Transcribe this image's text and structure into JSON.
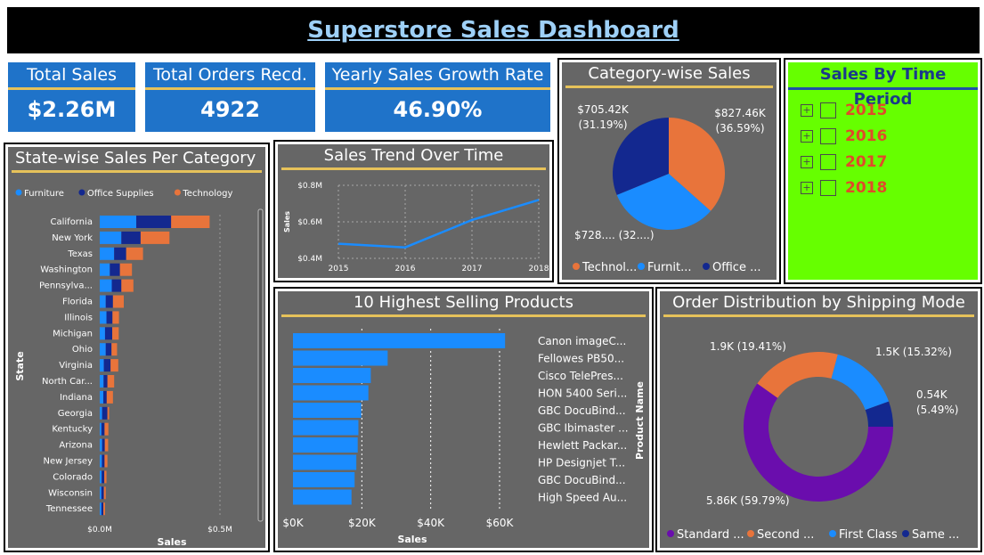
{
  "title": "Superstore Sales Dashboard",
  "kpis": {
    "total_sales": {
      "label": "Total Sales",
      "value": "$2.26M"
    },
    "total_orders": {
      "label": "Total Orders Recd.",
      "value": "4922"
    },
    "growth": {
      "label": "Yearly Sales Growth Rate",
      "value": "46.90%"
    }
  },
  "slicer": {
    "title": "Sales By Time Period",
    "years": [
      "2015",
      "2016",
      "2017",
      "2018"
    ]
  },
  "colors": {
    "furniture": "#1a8cff",
    "office": "#13288f",
    "technology": "#e8743b",
    "standard": "#6a0dad"
  },
  "chart_data": [
    {
      "id": "state",
      "type": "bar",
      "title": "State-wise Sales Per Category",
      "orientation": "horizontal-stacked",
      "legend": [
        "Furniture",
        "Office Supplies",
        "Technology"
      ],
      "categories": [
        "California",
        "New York",
        "Texas",
        "Washington",
        "Pennsylva...",
        "Florida",
        "Illinois",
        "Michigan",
        "Ohio",
        "Virginia",
        "North Car...",
        "Indiana",
        "Georgia",
        "Kentucky",
        "Arizona",
        "New Jersey",
        "Colorado",
        "Wisconsin",
        "Tennessee"
      ],
      "series": [
        {
          "name": "Furniture",
          "values": [
            0.152,
            0.09,
            0.06,
            0.042,
            0.05,
            0.025,
            0.028,
            0.022,
            0.025,
            0.017,
            0.016,
            0.015,
            0.01,
            0.007,
            0.01,
            0.009,
            0.008,
            0.007,
            0.007
          ]
        },
        {
          "name": "Office Supplies",
          "values": [
            0.145,
            0.08,
            0.05,
            0.042,
            0.04,
            0.03,
            0.025,
            0.03,
            0.024,
            0.028,
            0.016,
            0.014,
            0.022,
            0.013,
            0.011,
            0.011,
            0.011,
            0.01,
            0.008
          ]
        },
        {
          "name": "Technology",
          "values": [
            0.16,
            0.12,
            0.07,
            0.05,
            0.05,
            0.045,
            0.027,
            0.027,
            0.023,
            0.032,
            0.028,
            0.026,
            0.007,
            0.016,
            0.014,
            0.012,
            0.009,
            0.008,
            0.007
          ]
        }
      ],
      "xlabel": "Sales",
      "ylabel": "State",
      "xticks": [
        "$0.0M",
        "$0.5M"
      ],
      "xlim": [
        0,
        0.5
      ]
    },
    {
      "id": "trend",
      "type": "line",
      "title": "Sales Trend Over Time",
      "x": [
        "2015",
        "2016",
        "2017",
        "2018"
      ],
      "values": [
        0.48,
        0.46,
        0.61,
        0.72
      ],
      "ylabel": "Sales",
      "yticks": [
        "$0.4M",
        "$0.6M",
        "$0.8M"
      ],
      "ylim": [
        0.4,
        0.8
      ]
    },
    {
      "id": "category",
      "type": "pie",
      "title": "Category-wise Sales",
      "slices": [
        {
          "name": "Technology",
          "legend": "Technol...",
          "value": 36.59,
          "label_a": "$827.46K",
          "label_b": "(36.59%)"
        },
        {
          "name": "Furniture",
          "legend": "Furnit...",
          "value": 32.22,
          "label_a": "$728.... (32....)",
          "label_b": ""
        },
        {
          "name": "Office Supplies",
          "legend": "Office ...",
          "value": 31.19,
          "label_a": "$705.42K",
          "label_b": "(31.19%)"
        }
      ]
    },
    {
      "id": "products",
      "type": "bar",
      "title": "10 Highest Selling Products",
      "orientation": "horizontal",
      "categories": [
        "Canon imageC...",
        "Fellowes PB50...",
        "Cisco TelePres...",
        "HON 5400 Seri...",
        "GBC DocuBind...",
        "GBC Ibimaster ...",
        "Hewlett Packar...",
        "HP Designjet T...",
        "GBC DocuBind...",
        "High Speed Au..."
      ],
      "values": [
        61600,
        27500,
        22600,
        21900,
        19800,
        19000,
        18800,
        18400,
        17900,
        17000
      ],
      "xlabel": "Sales",
      "ylabel": "Product Name",
      "xticks": [
        "$0K",
        "$20K",
        "$40K",
        "$60K"
      ],
      "xlim": [
        0,
        60000
      ]
    },
    {
      "id": "shipping",
      "type": "pie",
      "title": "Order Distribution by Shipping Mode",
      "donut": true,
      "slices": [
        {
          "name": "Standard Class",
          "legend": "Standard ...",
          "value": 59.79,
          "label_a": "5.86K (59.79%)",
          "label_b": ""
        },
        {
          "name": "Second Class",
          "legend": "Second ...",
          "value": 19.41,
          "label_a": "1.9K (19.41%)",
          "label_b": ""
        },
        {
          "name": "First Class",
          "legend": "First Class",
          "value": 15.32,
          "label_a": "1.5K (15.32%)",
          "label_b": ""
        },
        {
          "name": "Same Day",
          "legend": "Same ...",
          "value": 5.49,
          "label_a": "0.54K",
          "label_b": "(5.49%)"
        }
      ]
    }
  ]
}
